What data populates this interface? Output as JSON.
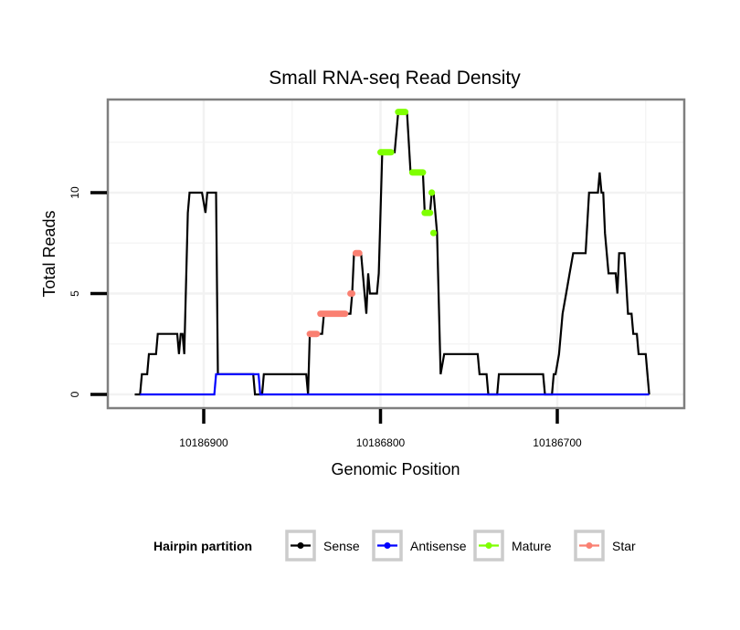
{
  "chart_data": {
    "type": "line",
    "title": "Small RNA-seq Read Density",
    "xlabel": "Genomic Position",
    "ylabel": "Total Reads",
    "xlim": [
      10186939,
      10186613
    ],
    "x_reversed": true,
    "ylim": [
      -0.7,
      14.6
    ],
    "x_ticks": [
      10186900,
      10186800,
      10186700
    ],
    "x_tick_labels": [
      "10186900",
      "10186800",
      "10186700"
    ],
    "y_ticks": [
      0,
      5,
      10
    ],
    "y_tick_labels": [
      "0",
      "5",
      "10"
    ],
    "grid": true,
    "legend": {
      "title": "Hairpin partition",
      "position": "bottom",
      "entries": [
        {
          "name": "Sense",
          "color": "#000000"
        },
        {
          "name": "Antisense",
          "color": "#0000ff"
        },
        {
          "name": "Mature",
          "color": "#7fff00"
        },
        {
          "name": "Star",
          "color": "#fa8072"
        }
      ]
    },
    "series": [
      {
        "name": "Sense",
        "color": "#000000",
        "points": [
          [
            10186939,
            0
          ],
          [
            10186936,
            0
          ],
          [
            10186935,
            1
          ],
          [
            10186932,
            1
          ],
          [
            10186931,
            2
          ],
          [
            10186927,
            2
          ],
          [
            10186926,
            3
          ],
          [
            10186915,
            3
          ],
          [
            10186914,
            2
          ],
          [
            10186913,
            3
          ],
          [
            10186912,
            3
          ],
          [
            10186911,
            2
          ],
          [
            10186909,
            9
          ],
          [
            10186908,
            10
          ],
          [
            10186901,
            10
          ],
          [
            10186899,
            9
          ],
          [
            10186898,
            10
          ],
          [
            10186893,
            10
          ],
          [
            10186892,
            1
          ],
          [
            10186872,
            1
          ],
          [
            10186871,
            0
          ],
          [
            10186867,
            0
          ],
          [
            10186866,
            1
          ],
          [
            10186842,
            1
          ],
          [
            10186841,
            0
          ],
          [
            10186840,
            3
          ],
          [
            10186833,
            3
          ],
          [
            10186832,
            4
          ],
          [
            10186817,
            4
          ],
          [
            10186816,
            5
          ],
          [
            10186815,
            7
          ],
          [
            10186811,
            7
          ],
          [
            10186808,
            4
          ],
          [
            10186807,
            6
          ],
          [
            10186806,
            5
          ],
          [
            10186802,
            5
          ],
          [
            10186801,
            6
          ],
          [
            10186799,
            12
          ],
          [
            10186792,
            12
          ],
          [
            10186790,
            14
          ],
          [
            10186785,
            14
          ],
          [
            10186783,
            11
          ],
          [
            10186776,
            11
          ],
          [
            10186775,
            9
          ],
          [
            10186772,
            9
          ],
          [
            10186771,
            10
          ],
          [
            10186770,
            10
          ],
          [
            10186768,
            8
          ],
          [
            10186766,
            1
          ],
          [
            10186764,
            2
          ],
          [
            10186745,
            2
          ],
          [
            10186744,
            1
          ],
          [
            10186740,
            1
          ],
          [
            10186739,
            0
          ],
          [
            10186734,
            0
          ],
          [
            10186733,
            1
          ],
          [
            10186708,
            1
          ],
          [
            10186707,
            0
          ],
          [
            10186703,
            0
          ],
          [
            10186702,
            1
          ],
          [
            10186701,
            1
          ],
          [
            10186699,
            2
          ],
          [
            10186697,
            4
          ],
          [
            10186695,
            5
          ],
          [
            10186693,
            6
          ],
          [
            10186691,
            7
          ],
          [
            10186684,
            7
          ],
          [
            10186682,
            10
          ],
          [
            10186677,
            10
          ],
          [
            10186676,
            11
          ],
          [
            10186675,
            10
          ],
          [
            10186674,
            10
          ],
          [
            10186673,
            8
          ],
          [
            10186671,
            6
          ],
          [
            10186667,
            6
          ],
          [
            10186666,
            5
          ],
          [
            10186665,
            7
          ],
          [
            10186662,
            7
          ],
          [
            10186660,
            4
          ],
          [
            10186658,
            4
          ],
          [
            10186657,
            3
          ],
          [
            10186655,
            3
          ],
          [
            10186654,
            2
          ],
          [
            10186650,
            2
          ],
          [
            10186649,
            1
          ],
          [
            10186648,
            0
          ]
        ]
      },
      {
        "name": "Antisense",
        "color": "#0000ff",
        "points": [
          [
            10186936,
            0
          ],
          [
            10186894,
            0
          ],
          [
            10186893,
            1
          ],
          [
            10186869,
            1
          ],
          [
            10186868,
            0
          ],
          [
            10186648,
            0
          ]
        ]
      },
      {
        "name": "Mature",
        "color": "#7fff00",
        "segments": [
          {
            "from": 10186800,
            "to": 10186794,
            "value": 12
          },
          {
            "from": 10186790,
            "to": 10186786,
            "value": 14
          },
          {
            "from": 10186782,
            "to": 10186776,
            "value": 11
          },
          {
            "from": 10186775,
            "to": 10186772,
            "value": 9
          },
          {
            "from": 10186771,
            "to": 10186771,
            "value": 10
          },
          {
            "from": 10186770,
            "to": 10186770,
            "value": 8
          }
        ]
      },
      {
        "name": "Star",
        "color": "#fa8072",
        "segments": [
          {
            "from": 10186840,
            "to": 10186836,
            "value": 3
          },
          {
            "from": 10186834,
            "to": 10186820,
            "value": 4
          },
          {
            "from": 10186817,
            "to": 10186816,
            "value": 5
          },
          {
            "from": 10186814,
            "to": 10186812,
            "value": 7
          }
        ]
      }
    ]
  }
}
